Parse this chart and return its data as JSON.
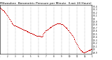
{
  "title": "Milwaukee  Barometric Pressure per Minute  (Last 24 Hours)",
  "title_fontsize": 3.2,
  "background_color": "#ffffff",
  "plot_background": "#ffffff",
  "line_color": "#cc0000",
  "grid_color": "#888888",
  "text_color": "#000000",
  "x_tick_fontsize": 2.0,
  "y_tick_fontsize": 2.0,
  "ylim_min": 28.85,
  "ylim_max": 30.45,
  "yticks": [
    28.9,
    29.0,
    29.1,
    29.2,
    29.3,
    29.4,
    29.5,
    29.6,
    29.7,
    29.8,
    29.9,
    30.0,
    30.1,
    30.2,
    30.3,
    30.4
  ],
  "ytick_labels": [
    "28.9",
    "29",
    "29.1",
    "29.2",
    "29.3",
    "29.4",
    "29.5",
    "29.6",
    "29.7",
    "29.8",
    "29.9",
    "30",
    "30.1",
    "30.2",
    "30.3",
    "30.4"
  ],
  "x_values": [
    0,
    1,
    2,
    3,
    4,
    5,
    6,
    7,
    8,
    9,
    10,
    11,
    12,
    13,
    14,
    15,
    16,
    17,
    18,
    19,
    20,
    21,
    22,
    23,
    24,
    25,
    26,
    27,
    28,
    29,
    30,
    31,
    32,
    33,
    34,
    35,
    36,
    37,
    38,
    39,
    40,
    41,
    42,
    43,
    44,
    45,
    46,
    47,
    48,
    49,
    50,
    51,
    52,
    53,
    54,
    55,
    56,
    57,
    58,
    59,
    60,
    61,
    62,
    63,
    64,
    65,
    66,
    67,
    68,
    69,
    70,
    71,
    72,
    73,
    74,
    75,
    76,
    77,
    78,
    79,
    80,
    81,
    82,
    83,
    84,
    85,
    86,
    87,
    88,
    89,
    90,
    91,
    92,
    93,
    94,
    95,
    96,
    97,
    98,
    99,
    100,
    101,
    102,
    103,
    104,
    105,
    106,
    107,
    108,
    109,
    110,
    111,
    112,
    113,
    114,
    115,
    116,
    117,
    118,
    119,
    120,
    121,
    122,
    123,
    124,
    125,
    126,
    127,
    128,
    129,
    130,
    131,
    132,
    133,
    134,
    135,
    136,
    137,
    138,
    139,
    140,
    141,
    142,
    143
  ],
  "y_values": [
    30.35,
    30.33,
    30.31,
    30.3,
    30.28,
    30.26,
    30.24,
    30.22,
    30.2,
    30.17,
    30.14,
    30.11,
    30.08,
    30.05,
    30.01,
    29.97,
    29.93,
    29.9,
    29.87,
    29.84,
    29.82,
    29.8,
    29.78,
    29.78,
    29.77,
    29.76,
    29.75,
    29.74,
    29.73,
    29.72,
    29.71,
    29.7,
    29.69,
    29.68,
    29.67,
    29.66,
    29.65,
    29.64,
    29.63,
    29.62,
    29.61,
    29.6,
    29.59,
    29.58,
    29.57,
    29.56,
    29.55,
    29.54,
    29.53,
    29.52,
    29.51,
    29.5,
    29.49,
    29.48,
    29.47,
    29.46,
    29.46,
    29.45,
    29.45,
    29.44,
    29.44,
    29.43,
    29.43,
    29.42,
    29.42,
    29.41,
    29.45,
    29.48,
    29.52,
    29.55,
    29.58,
    29.62,
    29.63,
    29.64,
    29.65,
    29.67,
    29.68,
    29.7,
    29.72,
    29.73,
    29.74,
    29.75,
    29.77,
    29.78,
    29.79,
    29.8,
    29.82,
    29.83,
    29.84,
    29.84,
    29.85,
    29.85,
    29.85,
    29.84,
    29.84,
    29.83,
    29.82,
    29.81,
    29.8,
    29.78,
    29.76,
    29.74,
    29.72,
    29.7,
    29.68,
    29.66,
    29.63,
    29.61,
    29.58,
    29.55,
    29.52,
    29.49,
    29.46,
    29.43,
    29.4,
    29.36,
    29.32,
    29.28,
    29.24,
    29.2,
    29.16,
    29.12,
    29.08,
    29.04,
    29.01,
    28.98,
    28.96,
    28.94,
    28.93,
    28.92,
    28.91,
    28.9,
    28.91,
    28.92,
    28.93,
    28.94,
    28.95,
    28.96,
    28.97,
    28.98,
    28.99,
    29.0,
    29.01,
    29.02
  ],
  "xtick_positions": [
    0,
    12,
    24,
    36,
    48,
    60,
    72,
    84,
    96,
    108,
    120,
    132,
    143
  ],
  "xtick_labels": [
    "1",
    "2",
    "3",
    "4",
    "5",
    "6",
    "7",
    "8",
    "9",
    "10",
    "11",
    "12",
    "1"
  ],
  "vgrid_positions": [
    12,
    24,
    36,
    48,
    60,
    72,
    84,
    96,
    108,
    120,
    132
  ],
  "marker_size": 0.7,
  "line_width": 0.0
}
